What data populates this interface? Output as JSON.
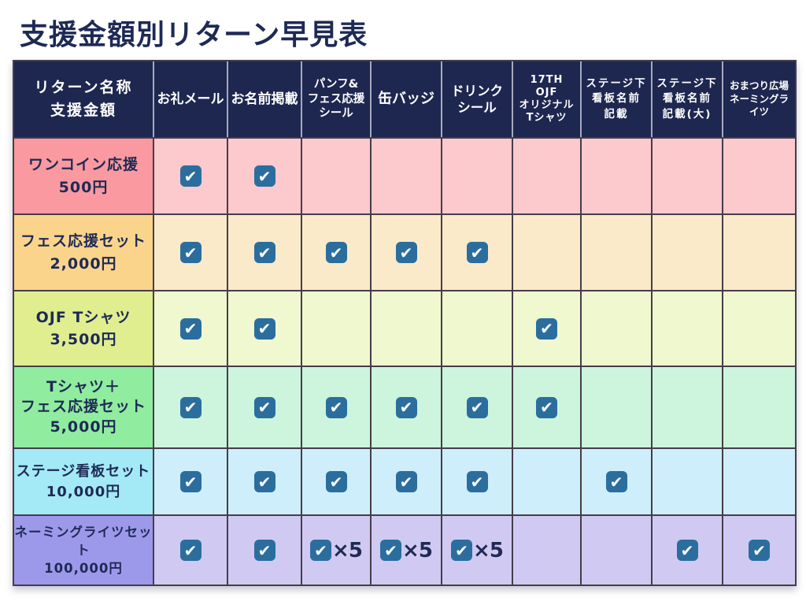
{
  "page": {
    "title_text": "支援金額別リターン早見表"
  },
  "colors": {
    "title": "#1e2a55",
    "header_bg": "#1e2750",
    "header_text": "#ffffff",
    "check_blue": "#2b6e9e",
    "border_dark": "#453d49",
    "border_light": "#a6aabd",
    "label_text": "#1e2a55"
  },
  "chart_data": {
    "type": "table",
    "title": "支援金額別リターン早見表",
    "corner_lines": [
      "リターン名称",
      "支援金額"
    ],
    "columns": [
      {
        "lines": [
          "お礼メール"
        ]
      },
      {
        "lines": [
          "お名前掲載"
        ]
      },
      {
        "lines": [
          "パンフ&",
          "フェス応援",
          "シール"
        ]
      },
      {
        "lines": [
          "缶バッジ"
        ]
      },
      {
        "lines": [
          "ドリンク",
          "シール"
        ]
      },
      {
        "lines": [
          "17TH",
          "OJF",
          "オリジナル",
          "Tシャツ"
        ]
      },
      {
        "lines": [
          "ステージ下",
          "看板名前",
          "記載"
        ]
      },
      {
        "lines": [
          "ステージ下",
          "看板名前",
          "記載(大)"
        ]
      },
      {
        "lines": [
          "おまつり広場",
          "ネーミングラ",
          "イツ"
        ]
      }
    ],
    "check_symbol": "✔",
    "multiplier_label": "×5",
    "rows": [
      {
        "name_lines": [
          "ワンコイン応援",
          "500円"
        ],
        "label_bg": "#fa99a0",
        "cell_bg": "#fcc9cd",
        "cells": [
          "check",
          "check",
          "",
          "",
          "",
          "",
          "",
          "",
          ""
        ]
      },
      {
        "name_lines": [
          "フェス応援セット",
          "2,000円"
        ],
        "label_bg": "#fbd48c",
        "cell_bg": "#faeaca",
        "cells": [
          "check",
          "check",
          "check",
          "check",
          "check",
          "",
          "",
          "",
          ""
        ]
      },
      {
        "name_lines": [
          "OJF Tシャツ",
          "3,500円"
        ],
        "label_bg": "#e0ee90",
        "cell_bg": "#f0f8d0",
        "cells": [
          "check",
          "check",
          "",
          "",
          "",
          "check",
          "",
          "",
          ""
        ]
      },
      {
        "name_lines": [
          "Tシャツ＋",
          "フェス応援セット",
          "5,000円"
        ],
        "label_bg": "#90ec9f",
        "cell_bg": "#cdf4dc",
        "cells": [
          "check",
          "check",
          "check",
          "check",
          "check",
          "check",
          "",
          "",
          ""
        ]
      },
      {
        "name_lines": [
          "ステージ看板セット",
          "10,000円"
        ],
        "label_bg": "#a3e9f6",
        "cell_bg": "#cfeefb",
        "cells": [
          "check",
          "check",
          "check",
          "check",
          "check",
          "",
          "check",
          "",
          ""
        ]
      },
      {
        "name_lines": [
          "ネーミングライツセット",
          "100,000円"
        ],
        "label_bg": "#9d99ea",
        "cell_bg": "#d0caf2",
        "cells": [
          "check",
          "check",
          "check_x5",
          "check_x5",
          "check_x5",
          "",
          "",
          "check",
          "check"
        ]
      }
    ]
  }
}
